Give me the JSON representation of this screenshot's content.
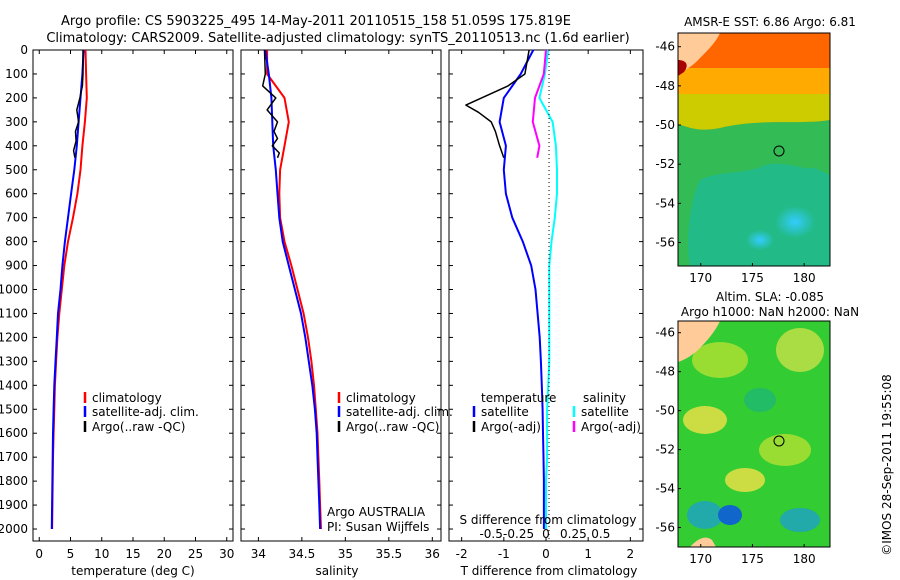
{
  "header": {
    "line1": "Argo profile: CS 5903225_495 14-May-2011 20110515_158 51.059S 175.819E",
    "line2": "Climatology: CARS2009. Satellite-adjusted climatology: synTS_20110513.nc (1.6d earlier)"
  },
  "colors": {
    "climatology": "#ff0000",
    "satellite": "#0000ff",
    "argo": "#000000",
    "sat_salinity": "#00ffff",
    "argo_salinity": "#ff00ff"
  },
  "depth_ticks": [
    0,
    100,
    200,
    300,
    400,
    500,
    600,
    700,
    800,
    900,
    1000,
    1100,
    1200,
    1300,
    1400,
    1500,
    1600,
    1700,
    1800,
    1900,
    2000
  ],
  "panels": {
    "temperature": {
      "xlabel": "temperature (deg C)",
      "xticks": [
        "0",
        "5",
        "10",
        "15",
        "20",
        "25",
        "30"
      ],
      "legend": [
        "climatology",
        "satellite-adj. clim.",
        "Argo(..raw -QC)"
      ]
    },
    "salinity": {
      "xlabel": "salinity",
      "xticks": [
        "34",
        "34.5",
        "35",
        "35.5",
        "36"
      ],
      "legend": [
        "climatology",
        "satellite-adj. clim.",
        "Argo(..raw -QC)"
      ],
      "note1": "Argo AUSTRALIA",
      "note2": "PI: Susan Wijffels"
    },
    "difference": {
      "xlabel": "T difference from climatology",
      "xlabel_top": "S difference from climatology",
      "xticks_t": [
        "-2",
        "-1",
        "0",
        "1",
        "2"
      ],
      "xticks_s": [
        "-0.5",
        "-0.25",
        "0",
        "0.25",
        "0.5"
      ],
      "legend_t_title": "temperature",
      "legend_t": [
        "satellite",
        "Argo(-adj)"
      ],
      "legend_s_title": "salinity",
      "legend_s": [
        "satellite",
        "Argo(-adj)"
      ]
    }
  },
  "maps": {
    "top_title": "AMSR-E SST: 6.86 Argo: 6.81",
    "bottom_title1": "Altim. SLA: -0.085",
    "bottom_title2": "Argo h1000: NaN h2000: NaN",
    "yticks": [
      "-46",
      "-48",
      "-50",
      "-52",
      "-54",
      "-56"
    ],
    "xticks": [
      "170",
      "175",
      "180"
    ]
  },
  "footer": "©IMOS 28-Sep-2011 19:55:08",
  "chart_data": [
    {
      "type": "line",
      "title": "",
      "xlabel": "temperature (deg C)",
      "ylabel": "",
      "xlim": [
        -1,
        31
      ],
      "ylim": [
        2050,
        0
      ],
      "series": [
        {
          "name": "climatology",
          "x": [
            7.4,
            7.5,
            7.6,
            7.3,
            6.9,
            6.6,
            6.1,
            5.4,
            4.6,
            4.0,
            3.6,
            3.2,
            2.9,
            2.7,
            2.5,
            2.4,
            2.3,
            2.2,
            2.15,
            2.1,
            2.05
          ],
          "y": [
            0,
            100,
            200,
            300,
            400,
            500,
            600,
            700,
            800,
            900,
            1000,
            1100,
            1200,
            1300,
            1400,
            1500,
            1600,
            1700,
            1800,
            1900,
            2000
          ]
        },
        {
          "name": "satellite-adj. clim.",
          "x": [
            7.1,
            6.9,
            6.6,
            6.3,
            6.0,
            5.6,
            5.1,
            4.6,
            4.1,
            3.7,
            3.4,
            3.0,
            2.8,
            2.6,
            2.4,
            2.3,
            2.2,
            2.15,
            2.1,
            2.05,
            2.0
          ],
          "y": [
            0,
            100,
            200,
            300,
            400,
            500,
            600,
            700,
            800,
            900,
            1000,
            1100,
            1200,
            1300,
            1400,
            1500,
            1600,
            1700,
            1800,
            1900,
            2000
          ]
        },
        {
          "name": "Argo(..raw -QC)",
          "x": [
            7.0,
            7.0,
            6.9,
            6.5,
            6.0,
            6.3,
            5.8,
            5.9,
            5.5,
            5.7
          ],
          "y": [
            0,
            100,
            150,
            200,
            250,
            300,
            340,
            380,
            420,
            450
          ]
        }
      ]
    },
    {
      "type": "line",
      "title": "",
      "xlabel": "salinity",
      "ylabel": "",
      "xlim": [
        33.8,
        36.1
      ],
      "ylim": [
        2050,
        0
      ],
      "series": [
        {
          "name": "climatology",
          "x": [
            34.1,
            34.1,
            34.3,
            34.35,
            34.3,
            34.25,
            34.24,
            34.25,
            34.3,
            34.38,
            34.45,
            34.52,
            34.57,
            34.61,
            34.64,
            34.66,
            34.68,
            34.69,
            34.7,
            34.71,
            34.72
          ],
          "y": [
            0,
            100,
            200,
            300,
            400,
            500,
            600,
            700,
            800,
            900,
            1000,
            1100,
            1200,
            1300,
            1400,
            1500,
            1600,
            1700,
            1800,
            1900,
            2000
          ]
        },
        {
          "name": "satellite-adj. clim.",
          "x": [
            34.08,
            34.12,
            34.15,
            34.16,
            34.17,
            34.2,
            34.22,
            34.24,
            34.28,
            34.35,
            34.42,
            34.49,
            34.54,
            34.58,
            34.62,
            34.65,
            34.67,
            34.68,
            34.69,
            34.7,
            34.71
          ],
          "y": [
            0,
            100,
            200,
            300,
            400,
            500,
            600,
            700,
            800,
            900,
            1000,
            1100,
            1200,
            1300,
            1400,
            1500,
            1600,
            1700,
            1800,
            1900,
            2000
          ]
        },
        {
          "name": "Argo(..raw -QC)",
          "x": [
            34.07,
            34.08,
            34.05,
            34.2,
            34.1,
            34.22,
            34.18,
            34.22,
            34.16,
            34.24,
            34.22
          ],
          "y": [
            0,
            100,
            150,
            200,
            250,
            300,
            340,
            370,
            400,
            430,
            450
          ]
        }
      ]
    },
    {
      "type": "line",
      "title": "",
      "xlabel": "T difference from climatology",
      "ylabel": "",
      "xlim": [
        -2.3,
        2.3
      ],
      "ylim": [
        2050,
        0
      ],
      "series": [
        {
          "name": "temperature satellite",
          "x": [
            -0.3,
            -0.6,
            -1.0,
            -1.1,
            -0.95,
            -1.0,
            -0.95,
            -0.8,
            -0.55,
            -0.35,
            -0.25,
            -0.2,
            -0.15,
            -0.12,
            -0.1,
            -0.08,
            -0.07,
            -0.06,
            -0.05,
            -0.05,
            -0.05
          ],
          "y": [
            0,
            100,
            200,
            300,
            400,
            500,
            600,
            700,
            800,
            900,
            1000,
            1100,
            1200,
            1300,
            1400,
            1500,
            1600,
            1700,
            1800,
            1900,
            2000
          ]
        },
        {
          "name": "temperature Argo(-adj)",
          "x": [
            -0.4,
            -0.5,
            -0.9,
            -1.9,
            -1.6,
            -1.3,
            -1.2,
            -1.1,
            -1.0
          ],
          "y": [
            0,
            100,
            150,
            230,
            260,
            300,
            340,
            400,
            450
          ]
        },
        {
          "name": "salinity satellite",
          "x": [
            0.02,
            -0.01,
            -0.06,
            0.06,
            0.09,
            0.1,
            0.1,
            0.08,
            0.05,
            0.03,
            0.03,
            0.03,
            0.03,
            0.03,
            0.02,
            0.01,
            0.01,
            0.01,
            0.0,
            0.0,
            0.0
          ],
          "y": [
            0,
            100,
            200,
            300,
            400,
            500,
            600,
            700,
            800,
            900,
            1000,
            1100,
            1200,
            1300,
            1400,
            1500,
            1600,
            1700,
            1800,
            1900,
            2000
          ]
        },
        {
          "name": "salinity Argo(-adj)",
          "x": [
            0.0,
            -0.02,
            -0.1,
            -0.12,
            -0.06,
            -0.08
          ],
          "y": [
            0,
            100,
            200,
            300,
            400,
            450
          ]
        }
      ]
    }
  ]
}
